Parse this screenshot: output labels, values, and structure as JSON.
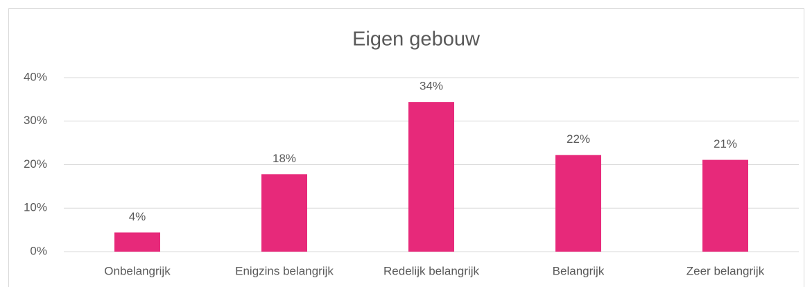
{
  "chart_data": {
    "type": "bar",
    "title": "Eigen gebouw",
    "categories": [
      "Onbelangrijk",
      "Enigzins belangrijk",
      "Redelijk belangrijk",
      "Belangrijk",
      "Zeer belangrijk"
    ],
    "values": [
      4.4,
      17.8,
      34.4,
      22.2,
      21.1
    ],
    "value_labels": [
      "4%",
      "18%",
      "34%",
      "22%",
      "21%"
    ],
    "color": "#e7297a",
    "ylim": [
      0,
      40
    ],
    "yticks": [
      {
        "value": 0,
        "label": "0%"
      },
      {
        "value": 10,
        "label": "10%"
      },
      {
        "value": 20,
        "label": "20%"
      },
      {
        "value": 30,
        "label": "30%"
      },
      {
        "value": 40,
        "label": "40%"
      }
    ],
    "grid": true
  }
}
